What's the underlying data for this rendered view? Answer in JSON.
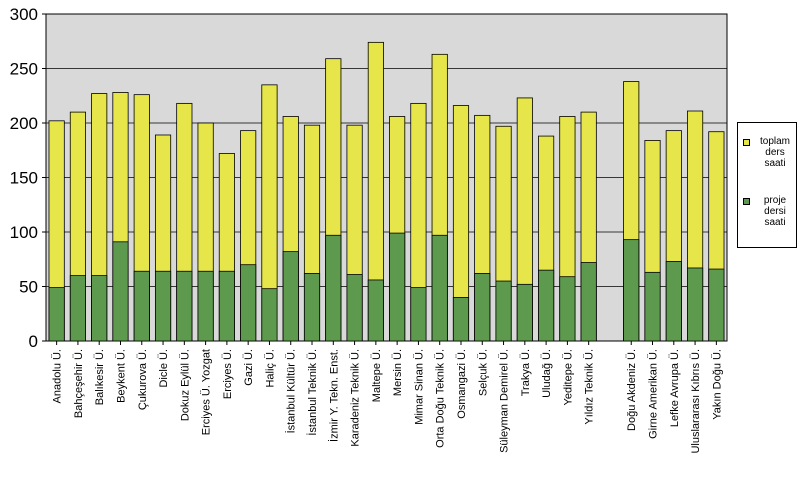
{
  "chart_data": {
    "type": "bar",
    "stacking": "overlay",
    "ylim": [
      0,
      300
    ],
    "yticks": [
      0,
      50,
      100,
      150,
      200,
      250,
      300
    ],
    "grid": true,
    "legend_position": "right",
    "categories": [
      "Anadolu Ü.",
      "Bahçeşehir Ü.",
      "Balıkesir Ü.",
      "Beykent Ü.",
      "Çukurova Ü.",
      "Dicle Ü.",
      "Dokuz Eylül Ü.",
      "Erciyes Ü. Yozgat",
      "Erciyes Ü.",
      "Gazi Ü.",
      "Haliç Ü.",
      "İstanbul Kültür Ü.",
      "İstanbul Teknik Ü.",
      "İzmir Y. Tekn. Enst.",
      "Karadeniz Teknik Ü.",
      "Maltepe Ü.",
      "Mersin Ü.",
      "Mimar Sinan Ü.",
      "Orta Doğu Teknik Ü.",
      "Osmangazi Ü.",
      "Selçuk Ü.",
      "Süleyman Demirel Ü.",
      "Trakya Ü.",
      "Uludağ Ü.",
      "Yeditepe Ü.",
      "Yıldız Teknik Ü.",
      "Doğu Akdeniz Ü.",
      "Girne Amerikan Ü.",
      "Lefke Avrupa Ü.",
      "Uluslararası Kıbrıs Ü.",
      "Yakın Doğu Ü."
    ],
    "group_gap_after_index": 25,
    "series": [
      {
        "name": "toplam ders saati",
        "color": "#e6e64b",
        "values": [
          202,
          210,
          227,
          228,
          226,
          189,
          218,
          200,
          172,
          193,
          235,
          206,
          198,
          259,
          198,
          274,
          206,
          218,
          263,
          216,
          207,
          197,
          223,
          188,
          206,
          210,
          238,
          184,
          193,
          211,
          192
        ]
      },
      {
        "name": "proje dersi saati",
        "color": "#5d9a4e",
        "values": [
          49,
          60,
          60,
          91,
          64,
          64,
          64,
          64,
          64,
          70,
          48,
          82,
          62,
          97,
          61,
          56,
          99,
          49,
          97,
          40,
          62,
          55,
          52,
          65,
          59,
          72,
          93,
          63,
          73,
          67,
          66
        ]
      }
    ]
  }
}
